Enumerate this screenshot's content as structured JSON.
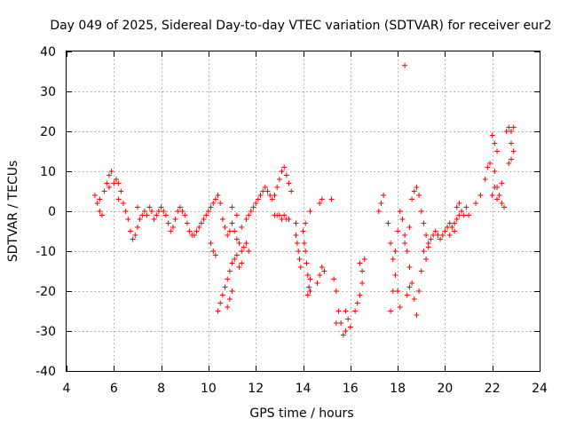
{
  "chart_data": {
    "type": "scatter",
    "title": "Day 049 of 2025, Sidereal Day-to-day VTEC variation (SDTVAR) for receiver eur2",
    "xlabel": "GPS time / hours",
    "ylabel": "SDTVAR / TECUs",
    "xlim": [
      4,
      24
    ],
    "ylim": [
      -40,
      40
    ],
    "xticks": [
      4,
      6,
      8,
      10,
      12,
      14,
      16,
      18,
      20,
      22,
      24
    ],
    "yticks": [
      -40,
      -30,
      -20,
      -10,
      0,
      10,
      20,
      30,
      40
    ],
    "grid": true,
    "marker": "+",
    "color": "#ff0000",
    "series": [
      {
        "name": "SDTVAR",
        "points": [
          [
            5.2,
            4
          ],
          [
            5.3,
            2
          ],
          [
            5.4,
            0
          ],
          [
            5.5,
            -1
          ],
          [
            5.4,
            3
          ],
          [
            5.6,
            5
          ],
          [
            5.7,
            7
          ],
          [
            5.8,
            9
          ],
          [
            5.9,
            10
          ],
          [
            5.8,
            6
          ],
          [
            6.0,
            7
          ],
          [
            6.1,
            8
          ],
          [
            6.2,
            7
          ],
          [
            6.3,
            5
          ],
          [
            6.2,
            3
          ],
          [
            6.4,
            2
          ],
          [
            6.5,
            0
          ],
          [
            6.6,
            -2
          ],
          [
            6.7,
            -5
          ],
          [
            6.8,
            -7
          ],
          [
            6.9,
            -6
          ],
          [
            7.0,
            -4
          ],
          [
            7.1,
            -2
          ],
          [
            7.2,
            -1
          ],
          [
            7.0,
            1
          ],
          [
            7.3,
            0
          ],
          [
            7.4,
            -1
          ],
          [
            7.5,
            1
          ],
          [
            7.6,
            0
          ],
          [
            7.7,
            -2
          ],
          [
            7.8,
            -1
          ],
          [
            7.9,
            0
          ],
          [
            8.0,
            1
          ],
          [
            8.1,
            0
          ],
          [
            8.2,
            -1
          ],
          [
            8.3,
            -3
          ],
          [
            8.4,
            -5
          ],
          [
            8.5,
            -4
          ],
          [
            8.6,
            -2
          ],
          [
            8.7,
            0
          ],
          [
            8.8,
            1
          ],
          [
            8.9,
            0
          ],
          [
            9.0,
            -1
          ],
          [
            9.1,
            -3
          ],
          [
            9.2,
            -5
          ],
          [
            9.3,
            -6
          ],
          [
            9.4,
            -6
          ],
          [
            9.5,
            -5
          ],
          [
            9.6,
            -4
          ],
          [
            9.7,
            -3
          ],
          [
            9.8,
            -2
          ],
          [
            9.9,
            -1
          ],
          [
            10.0,
            0
          ],
          [
            10.1,
            1
          ],
          [
            10.2,
            2
          ],
          [
            10.3,
            3
          ],
          [
            10.4,
            4
          ],
          [
            10.5,
            2
          ],
          [
            10.6,
            -2
          ],
          [
            10.7,
            -4
          ],
          [
            10.8,
            -6
          ],
          [
            10.9,
            -5
          ],
          [
            11.0,
            -3
          ],
          [
            11.1,
            -5
          ],
          [
            11.2,
            -7
          ],
          [
            11.3,
            -8
          ],
          [
            11.4,
            -10
          ],
          [
            11.5,
            -9
          ],
          [
            11.6,
            -8
          ],
          [
            11.7,
            -10
          ],
          [
            10.4,
            -25
          ],
          [
            10.5,
            -23
          ],
          [
            10.6,
            -21
          ],
          [
            10.7,
            -19
          ],
          [
            10.8,
            -17
          ],
          [
            10.9,
            -15
          ],
          [
            11.0,
            -13
          ],
          [
            11.1,
            -12
          ],
          [
            11.2,
            -11
          ],
          [
            11.3,
            -14
          ],
          [
            11.4,
            -13
          ],
          [
            11.0,
            -20
          ],
          [
            10.9,
            -22
          ],
          [
            10.8,
            -24
          ],
          [
            10.1,
            -8
          ],
          [
            10.2,
            -10
          ],
          [
            10.3,
            -11
          ],
          [
            11.6,
            -2
          ],
          [
            11.7,
            -1
          ],
          [
            11.8,
            0
          ],
          [
            11.9,
            1
          ],
          [
            12.0,
            2
          ],
          [
            12.1,
            3
          ],
          [
            12.2,
            4
          ],
          [
            12.3,
            5
          ],
          [
            12.4,
            6
          ],
          [
            12.5,
            5
          ],
          [
            12.6,
            4
          ],
          [
            12.7,
            3
          ],
          [
            12.8,
            4
          ],
          [
            12.9,
            6
          ],
          [
            13.0,
            8
          ],
          [
            13.1,
            10
          ],
          [
            13.2,
            11
          ],
          [
            13.3,
            9
          ],
          [
            13.4,
            7
          ],
          [
            13.5,
            5
          ],
          [
            12.8,
            -1
          ],
          [
            12.9,
            -1
          ],
          [
            13.0,
            -1
          ],
          [
            13.1,
            -2
          ],
          [
            13.2,
            -1
          ],
          [
            13.3,
            -2
          ],
          [
            13.4,
            -2
          ],
          [
            11.4,
            -4
          ],
          [
            11.2,
            -1
          ],
          [
            11.0,
            1
          ],
          [
            13.7,
            -6
          ],
          [
            13.75,
            -8
          ],
          [
            13.8,
            -10
          ],
          [
            13.85,
            -12
          ],
          [
            13.9,
            -14
          ],
          [
            13.7,
            -3
          ],
          [
            14.0,
            -5
          ],
          [
            14.05,
            -8
          ],
          [
            14.1,
            -10
          ],
          [
            14.15,
            -13
          ],
          [
            14.2,
            -16
          ],
          [
            14.25,
            -19
          ],
          [
            14.3,
            -20
          ],
          [
            14.3,
            -17
          ],
          [
            14.2,
            -21
          ],
          [
            14.1,
            -3
          ],
          [
            14.3,
            0
          ],
          [
            14.6,
            -18
          ],
          [
            14.7,
            -16
          ],
          [
            14.8,
            -14
          ],
          [
            14.9,
            -15
          ],
          [
            14.7,
            2
          ],
          [
            14.8,
            3
          ],
          [
            15.2,
            3
          ],
          [
            15.3,
            -17
          ],
          [
            15.4,
            -20
          ],
          [
            15.5,
            -25
          ],
          [
            15.6,
            -28
          ],
          [
            15.7,
            -31
          ],
          [
            15.8,
            -30
          ],
          [
            15.9,
            -27
          ],
          [
            15.8,
            -25
          ],
          [
            16.0,
            -29
          ],
          [
            15.4,
            -28
          ],
          [
            16.2,
            -25
          ],
          [
            16.3,
            -23
          ],
          [
            16.4,
            -21
          ],
          [
            16.5,
            -18
          ],
          [
            16.5,
            -15
          ],
          [
            16.4,
            -13
          ],
          [
            16.6,
            -12
          ],
          [
            17.2,
            0
          ],
          [
            17.3,
            2
          ],
          [
            17.4,
            4
          ],
          [
            17.6,
            -3
          ],
          [
            17.7,
            -8
          ],
          [
            17.8,
            -12
          ],
          [
            17.9,
            -16
          ],
          [
            18.0,
            -20
          ],
          [
            18.1,
            -24
          ],
          [
            17.7,
            -25
          ],
          [
            17.8,
            -20
          ],
          [
            17.9,
            -10
          ],
          [
            18.0,
            -5
          ],
          [
            18.1,
            0
          ],
          [
            18.2,
            -2
          ],
          [
            18.3,
            -6
          ],
          [
            18.4,
            -10
          ],
          [
            18.5,
            -14
          ],
          [
            18.6,
            -18
          ],
          [
            18.7,
            -22
          ],
          [
            18.8,
            -26
          ],
          [
            18.9,
            -20
          ],
          [
            19.0,
            -15
          ],
          [
            18.4,
            -21
          ],
          [
            18.5,
            -19
          ],
          [
            18.3,
            -8
          ],
          [
            18.5,
            -4
          ],
          [
            18.6,
            3
          ],
          [
            18.7,
            5
          ],
          [
            18.8,
            6
          ],
          [
            18.9,
            4
          ],
          [
            19.0,
            0
          ],
          [
            19.1,
            -3
          ],
          [
            19.2,
            -6
          ],
          [
            19.3,
            -8
          ],
          [
            19.4,
            -7
          ],
          [
            19.5,
            -6
          ],
          [
            19.6,
            -5
          ],
          [
            19.7,
            -6
          ],
          [
            19.8,
            -7
          ],
          [
            19.9,
            -6
          ],
          [
            20.0,
            -5
          ],
          [
            20.1,
            -4
          ],
          [
            20.2,
            -3
          ],
          [
            20.3,
            -4
          ],
          [
            20.4,
            -3
          ],
          [
            20.5,
            -2
          ],
          [
            20.6,
            -1
          ],
          [
            20.7,
            0
          ],
          [
            20.8,
            -1
          ],
          [
            19.1,
            -10
          ],
          [
            19.2,
            -12
          ],
          [
            19.3,
            -9
          ],
          [
            20.5,
            1
          ],
          [
            20.6,
            2
          ],
          [
            20.2,
            -6
          ],
          [
            20.4,
            -5
          ],
          [
            21.0,
            -1
          ],
          [
            20.9,
            1
          ],
          [
            21.3,
            2
          ],
          [
            21.5,
            4
          ],
          [
            21.7,
            8
          ],
          [
            21.8,
            11
          ],
          [
            21.9,
            12
          ],
          [
            22.0,
            19
          ],
          [
            22.1,
            17
          ],
          [
            22.2,
            15
          ],
          [
            22.1,
            10
          ],
          [
            22.2,
            6
          ],
          [
            22.3,
            4
          ],
          [
            22.4,
            2
          ],
          [
            22.5,
            1
          ],
          [
            22.4,
            7
          ],
          [
            22.6,
            20
          ],
          [
            22.7,
            21
          ],
          [
            22.8,
            20
          ],
          [
            22.9,
            21
          ],
          [
            22.8,
            17
          ],
          [
            22.9,
            15
          ],
          [
            22.8,
            13
          ],
          [
            22.7,
            12
          ],
          [
            22.1,
            6
          ],
          [
            22.0,
            4
          ],
          [
            22.2,
            3
          ],
          [
            18.3,
            36.5
          ]
        ]
      }
    ]
  }
}
